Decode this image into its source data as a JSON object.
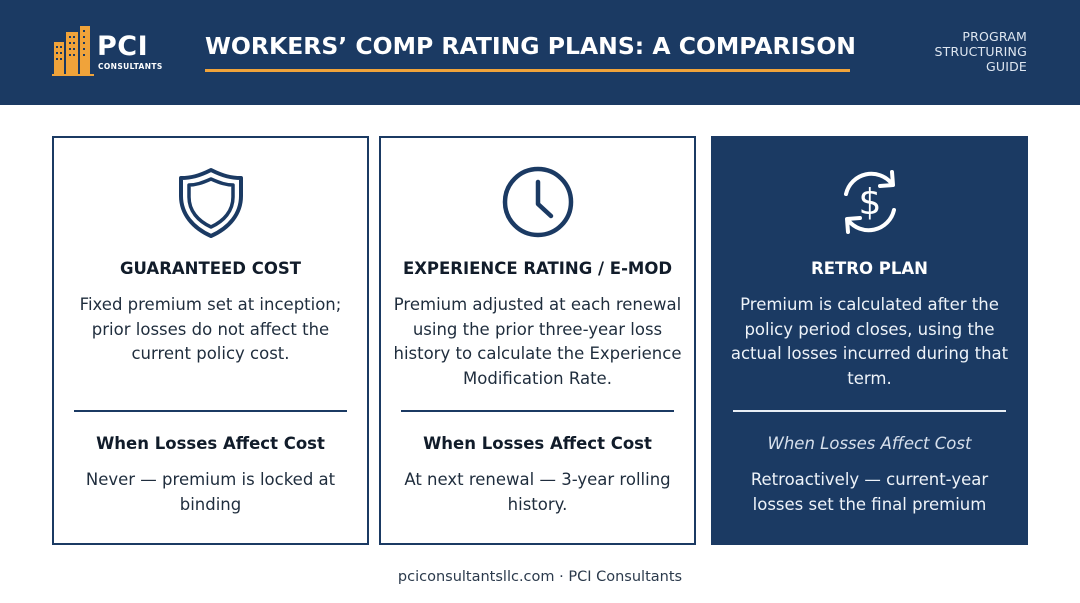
{
  "header": {
    "logo_text": "PCI",
    "logo_subtext": "CONSULTANTS",
    "title": "WORKERS’ COMP RATING PLANS: A COMPARISON",
    "tagline_lines": [
      "PROGRAM",
      "STRUCTURING",
      "GUIDE"
    ]
  },
  "colors": {
    "navy": "#1b3a63",
    "accent_orange": "#f0a33a",
    "white": "#ffffff"
  },
  "cards": [
    {
      "icon": "shield-icon",
      "title": "GUARANTEED COST",
      "description": "Fixed premium set at inception; prior losses do not affect the current policy cost.",
      "subhead": "When Losses Affect Cost",
      "when": "Never — premium is locked at binding"
    },
    {
      "icon": "clock-icon",
      "title": "EXPERIENCE RATING / E-MOD",
      "description": "Premium adjusted at each renewal using the prior three-year loss history to calculate the Experience Modification Rate.",
      "subhead": "When Losses Affect Cost",
      "when": "At next renewal — 3-year rolling history."
    },
    {
      "icon": "dollar-cycle-icon",
      "title": "RETRO PLAN",
      "description": "Premium is calculated after the policy period closes, using the actual losses incurred during that term.",
      "subhead": "When Losses Affect Cost",
      "when": "Retroactively — current-year losses set the final premium"
    }
  ],
  "footer": {
    "text": "pciconsultantsllc.com · PCI Consultants"
  }
}
